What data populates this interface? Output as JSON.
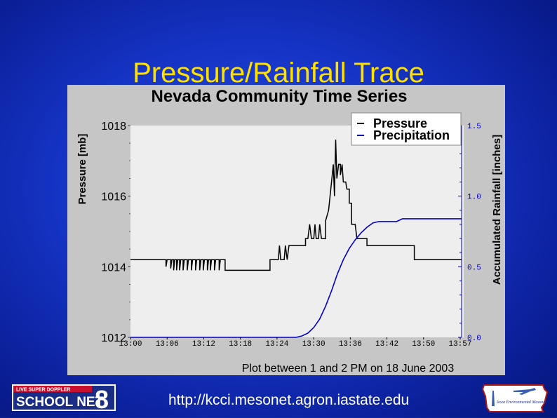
{
  "slide": {
    "title": "Pressure/Rainfall Trace",
    "footer_url": "http://kcci.mesonet.agron.iastate.edu"
  },
  "logos": {
    "left_top_text": "LIVE SUPER DOPPLER",
    "left_main_text": "SCHOOL NET",
    "left_number": "8",
    "right_text": "Iowa Environmental Mesonet"
  },
  "colors": {
    "background": "#1533c4",
    "title": "#ffe000",
    "panel": "#c6c6c6",
    "plot_area": "#eeeeee",
    "pressure": "#000000",
    "precipitation": "#0000cc"
  },
  "chart_data": {
    "type": "line",
    "title": "Nevada Community Time Series",
    "xlabel": "Plot between 1 and 2 PM on 18 June 2003",
    "ylabel_left": "Pressure [mb]",
    "ylabel_right": "Accumulated Rainfall [inches]",
    "x_ticks": [
      "13:00",
      "13:06",
      "13:12",
      "13:18",
      "13:24",
      "13:30",
      "13:36",
      "13:42",
      "13:50",
      "13:57"
    ],
    "y_left_ticks": [
      "1012",
      "1014",
      "1016",
      "1018"
    ],
    "y_right_ticks": [
      "0.0",
      "0.5",
      "1.0",
      "1.5"
    ],
    "y_left_range": [
      1012,
      1018
    ],
    "y_right_range": [
      0.0,
      1.5
    ],
    "x_range_minutes": [
      0,
      56
    ],
    "legend": [
      "Pressure",
      "Precipitation"
    ],
    "legend_position": "top-right",
    "series": [
      {
        "name": "Pressure",
        "axis": "left",
        "color": "#000000",
        "points": [
          [
            0,
            1014.2
          ],
          [
            6.0,
            1014.2
          ],
          [
            6.0,
            1014.0
          ],
          [
            6.2,
            1014.2
          ],
          [
            6.8,
            1014.2
          ],
          [
            6.8,
            1013.95
          ],
          [
            7.0,
            1014.2
          ],
          [
            7.3,
            1014.2
          ],
          [
            7.3,
            1013.9
          ],
          [
            7.5,
            1014.2
          ],
          [
            7.8,
            1014.2
          ],
          [
            7.8,
            1013.9
          ],
          [
            8.0,
            1014.2
          ],
          [
            8.3,
            1014.2
          ],
          [
            8.3,
            1013.9
          ],
          [
            8.5,
            1014.2
          ],
          [
            8.9,
            1014.2
          ],
          [
            8.9,
            1013.9
          ],
          [
            9.1,
            1014.2
          ],
          [
            9.6,
            1014.2
          ],
          [
            9.6,
            1013.9
          ],
          [
            9.8,
            1014.2
          ],
          [
            10.3,
            1014.2
          ],
          [
            10.3,
            1013.9
          ],
          [
            10.5,
            1014.2
          ],
          [
            11.0,
            1014.2
          ],
          [
            11.0,
            1013.9
          ],
          [
            11.2,
            1014.2
          ],
          [
            11.7,
            1014.2
          ],
          [
            11.7,
            1013.9
          ],
          [
            11.9,
            1014.2
          ],
          [
            12.3,
            1014.2
          ],
          [
            12.3,
            1013.9
          ],
          [
            12.5,
            1014.2
          ],
          [
            13.0,
            1014.2
          ],
          [
            13.0,
            1013.9
          ],
          [
            13.2,
            1014.2
          ],
          [
            13.5,
            1014.2
          ],
          [
            13.5,
            1013.9
          ],
          [
            13.7,
            1014.2
          ],
          [
            14.2,
            1014.2
          ],
          [
            14.2,
            1013.9
          ],
          [
            14.4,
            1014.2
          ],
          [
            15.0,
            1014.2
          ],
          [
            15.0,
            1013.9
          ],
          [
            15.2,
            1014.2
          ],
          [
            16.0,
            1014.2
          ],
          [
            16.0,
            1013.9
          ],
          [
            16.2,
            1013.9
          ],
          [
            16.5,
            1013.9
          ],
          [
            23.6,
            1013.9
          ],
          [
            23.6,
            1014.2
          ],
          [
            25.0,
            1014.2
          ],
          [
            25.2,
            1014.6
          ],
          [
            25.4,
            1014.2
          ],
          [
            26.0,
            1014.2
          ],
          [
            26.2,
            1014.6
          ],
          [
            26.5,
            1014.2
          ],
          [
            26.8,
            1014.6
          ],
          [
            29.6,
            1014.6
          ],
          [
            29.6,
            1014.8
          ],
          [
            30.0,
            1014.8
          ],
          [
            30.3,
            1015.2
          ],
          [
            30.6,
            1014.8
          ],
          [
            31.0,
            1014.8
          ],
          [
            31.2,
            1015.2
          ],
          [
            31.4,
            1014.8
          ],
          [
            31.8,
            1014.8
          ],
          [
            32.0,
            1015.2
          ],
          [
            32.3,
            1014.8
          ],
          [
            33.0,
            1014.8
          ],
          [
            33.0,
            1015.3
          ],
          [
            33.5,
            1015.6
          ],
          [
            34.0,
            1016.4
          ],
          [
            34.3,
            1016.9
          ],
          [
            34.5,
            1016.0
          ],
          [
            34.7,
            1017.6
          ],
          [
            34.9,
            1016.5
          ],
          [
            35.2,
            1016.9
          ],
          [
            35.5,
            1016.9
          ],
          [
            35.5,
            1016.6
          ],
          [
            35.8,
            1016.9
          ],
          [
            36.0,
            1016.4
          ],
          [
            36.4,
            1016.4
          ],
          [
            36.6,
            1016.2
          ],
          [
            37.0,
            1016.2
          ],
          [
            37.0,
            1015.8
          ],
          [
            37.4,
            1015.8
          ],
          [
            37.4,
            1015.2
          ],
          [
            38.0,
            1015.2
          ],
          [
            38.3,
            1014.8
          ],
          [
            40.0,
            1014.8
          ],
          [
            40.0,
            1014.6
          ],
          [
            48.0,
            1014.6
          ],
          [
            48.0,
            1014.2
          ],
          [
            56.0,
            1014.2
          ]
        ]
      },
      {
        "name": "Precipitation",
        "axis": "right",
        "color": "#0000cc",
        "points": [
          [
            0,
            0.0
          ],
          [
            28.0,
            0.0
          ],
          [
            29.0,
            0.01
          ],
          [
            30.0,
            0.03
          ],
          [
            31.0,
            0.07
          ],
          [
            32.0,
            0.13
          ],
          [
            33.0,
            0.22
          ],
          [
            34.0,
            0.33
          ],
          [
            35.0,
            0.45
          ],
          [
            36.0,
            0.55
          ],
          [
            37.0,
            0.63
          ],
          [
            38.0,
            0.69
          ],
          [
            39.0,
            0.74
          ],
          [
            40.0,
            0.78
          ],
          [
            41.0,
            0.81
          ],
          [
            42.0,
            0.82
          ],
          [
            45.0,
            0.82
          ],
          [
            46.0,
            0.84
          ],
          [
            56.0,
            0.84
          ]
        ]
      }
    ]
  }
}
